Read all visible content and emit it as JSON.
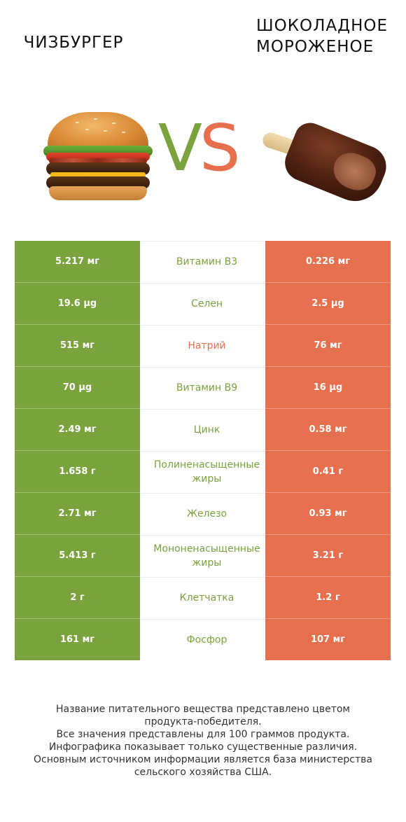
{
  "header": {
    "left_title": "ЧИЗБУРГЕР",
    "right_title_line1": "ШОКОЛАДНОЕ",
    "right_title_line2": "МОРОЖЕНОЕ",
    "vs_v": "V",
    "vs_s": "S"
  },
  "colors": {
    "left_accent": "#7aa23d",
    "right_accent": "#e6704e"
  },
  "rows": [
    {
      "left": "5.217 мг",
      "nutrient": "Витамин B3",
      "right": "0.226 мг",
      "winner": "left"
    },
    {
      "left": "19.6 µg",
      "nutrient": "Селен",
      "right": "2.5 µg",
      "winner": "left"
    },
    {
      "left": "515 мг",
      "nutrient": "Натрий",
      "right": "76 мг",
      "winner": "right"
    },
    {
      "left": "70 µg",
      "nutrient": "Витамин B9",
      "right": "16 µg",
      "winner": "left"
    },
    {
      "left": "2.49 мг",
      "nutrient": "Цинк",
      "right": "0.58 мг",
      "winner": "left"
    },
    {
      "left": "1.658 г",
      "nutrient": "Полиненасыщенные жиры",
      "right": "0.41 г",
      "winner": "left"
    },
    {
      "left": "2.71 мг",
      "nutrient": "Железо",
      "right": "0.93 мг",
      "winner": "left"
    },
    {
      "left": "5.413 г",
      "nutrient": "Мононенасыщенные жиры",
      "right": "3.21 г",
      "winner": "left"
    },
    {
      "left": "2 г",
      "nutrient": "Клетчатка",
      "right": "1.2 г",
      "winner": "left"
    },
    {
      "left": "161 мг",
      "nutrient": "Фосфор",
      "right": "107 мг",
      "winner": "left"
    }
  ],
  "footer": {
    "line1": "Название питательного вещества представлено цветом",
    "line2": "продукта-победителя.",
    "line3": "Все значения представлены для 100 граммов продукта.",
    "line4": "Инфографика показывает только существенные различия.",
    "line5": "Основным источником информации является база министерства",
    "line6": "сельского хозяйства США."
  }
}
